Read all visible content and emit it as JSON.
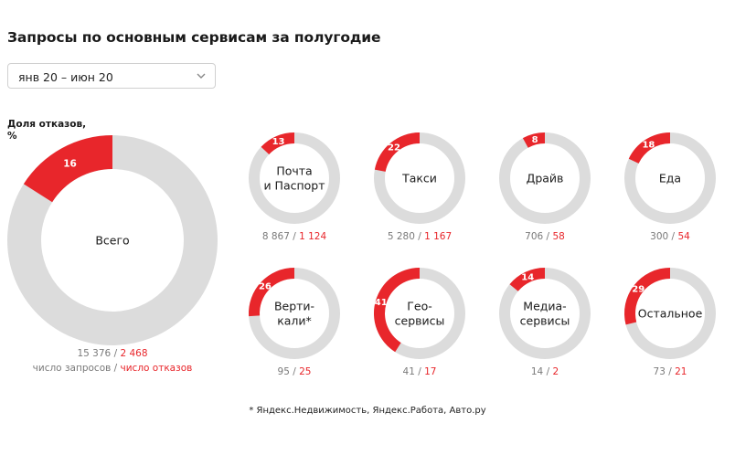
{
  "title": "Запросы по основным сервисам за полугодие",
  "period": {
    "selected": "янв 20 – июн 20"
  },
  "share_label": "Доля отказов, %",
  "legend": {
    "requests": "число запросов",
    "separator": " / ",
    "refusals": "число отказов"
  },
  "footnote": "* Яндекс.Недвижимость, Яндекс.Работа, Авто.ру",
  "colors": {
    "refusal": "#e8262b",
    "ring": "#dcdcdc"
  },
  "chart_data": {
    "type": "donut",
    "unit": "%",
    "series": [
      {
        "name": "Всего",
        "label_lines": [
          "Всего"
        ],
        "refusal_share": 16,
        "requests": "15 376",
        "refusals": "2 468"
      },
      {
        "name": "Почта и Паспорт",
        "label_lines": [
          "Почта",
          "и Паспорт"
        ],
        "refusal_share": 13,
        "requests": "8 867",
        "refusals": "1 124"
      },
      {
        "name": "Такси",
        "label_lines": [
          "Такси"
        ],
        "refusal_share": 22,
        "requests": "5 280",
        "refusals": "1 167"
      },
      {
        "name": "Драйв",
        "label_lines": [
          "Драйв"
        ],
        "refusal_share": 8,
        "requests": "706",
        "refusals": "58"
      },
      {
        "name": "Еда",
        "label_lines": [
          "Еда"
        ],
        "refusal_share": 18,
        "requests": "300",
        "refusals": "54"
      },
      {
        "name": "Вертикали*",
        "label_lines": [
          "Верти-",
          "кали*"
        ],
        "refusal_share": 26,
        "requests": "95",
        "refusals": "25"
      },
      {
        "name": "Геосервисы",
        "label_lines": [
          "Гео-",
          "сервисы"
        ],
        "refusal_share": 41,
        "requests": "41",
        "refusals": "17"
      },
      {
        "name": "Медиасервисы",
        "label_lines": [
          "Медиа-",
          "сервисы"
        ],
        "refusal_share": 14,
        "requests": "14",
        "refusals": "2"
      },
      {
        "name": "Остальное",
        "label_lines": [
          "Остальное"
        ],
        "refusal_share": 29,
        "requests": "73",
        "refusals": "21"
      }
    ]
  }
}
